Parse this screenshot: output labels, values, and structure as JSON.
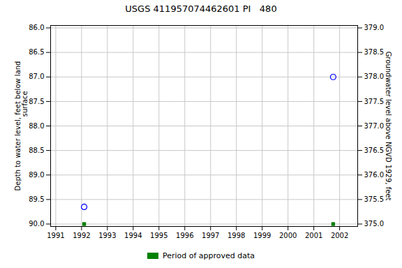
{
  "chart_data": {
    "type": "scatter",
    "title": "USGS 411957074462601 PI   480",
    "x": [
      1992.1,
      2001.75
    ],
    "series": [
      {
        "color": "#0000ff",
        "marker": "circle",
        "values": [
          89.65,
          87.0
        ]
      },
      {
        "name": "Period of approved data",
        "color": "#008000",
        "marker": "square",
        "values": [
          90.0,
          90.0
        ]
      }
    ],
    "xlim": [
      1990.8,
      2002.7
    ],
    "xticks": [
      1991,
      1992,
      1993,
      1994,
      1995,
      1996,
      1997,
      1998,
      1999,
      2000,
      2001,
      2002
    ],
    "ylim": [
      90.05,
      85.95
    ],
    "yticks": [
      {
        "value": 86,
        "label": "86.0"
      },
      86.5,
      {
        "value": 87,
        "label": "87.0"
      },
      87.5,
      {
        "value": 88,
        "label": "88.0"
      },
      88.5,
      {
        "value": 89,
        "label": "89.0"
      },
      89.5,
      {
        "value": 90,
        "label": "90.0"
      }
    ],
    "y2lim": [
      374.95,
      379.05
    ],
    "y2ticks": [
      {
        "value": 375,
        "label": "375.0"
      },
      375.5,
      {
        "value": 376,
        "label": "376.0"
      },
      376.5,
      {
        "value": 377,
        "label": "377.0"
      },
      377.5,
      {
        "value": 378,
        "label": "378.0"
      },
      378.5,
      {
        "value": 379,
        "label": "379.0"
      }
    ],
    "ylabel": "Depth to water level, feet below land\n                    surface",
    "y2label": "Groundwater level above NGVD 1929, feet",
    "grid": true,
    "legend": "bottom"
  }
}
